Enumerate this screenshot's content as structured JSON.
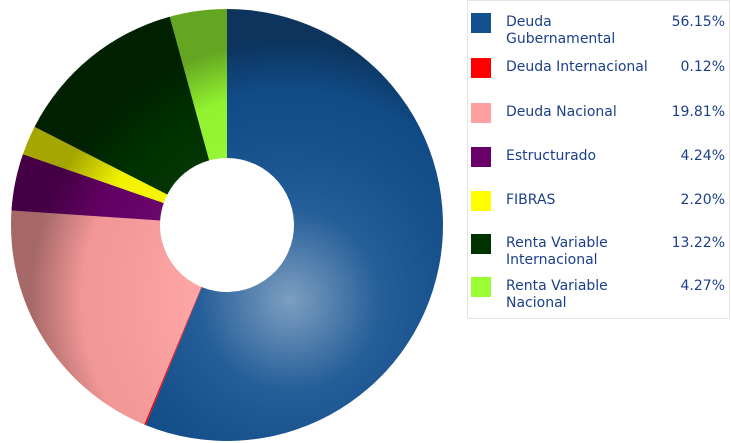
{
  "chart_data": {
    "type": "donut",
    "categories": [
      "Deuda Gubernamental",
      "Deuda Internacional",
      "Deuda Nacional",
      "Estructurado",
      "FIBRAS",
      "Renta Variable Internacional",
      "Renta Variable Nacional"
    ],
    "values": [
      56.15,
      0.12,
      19.81,
      4.24,
      2.2,
      13.22,
      4.27
    ],
    "value_labels": [
      "56.15%",
      "0.12%",
      "19.81%",
      "4.24%",
      "2.20%",
      "13.22%",
      "4.27%"
    ],
    "colors": [
      "#12508f",
      "#ff0000",
      "#ff9f9f",
      "#6a006a",
      "#ffff00",
      "#003300",
      "#99ff33"
    ],
    "legend": "right"
  }
}
